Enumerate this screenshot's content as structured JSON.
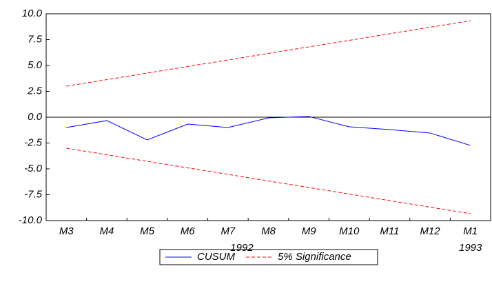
{
  "chart_data": {
    "type": "line",
    "categories": [
      "M3",
      "M4",
      "M5",
      "M6",
      "M7",
      "M8",
      "M9",
      "M10",
      "M11",
      "M12",
      "M1"
    ],
    "year_labels": [
      null,
      null,
      null,
      null,
      "1992",
      null,
      null,
      null,
      null,
      null,
      "1993"
    ],
    "series": [
      {
        "name": "CUSUM",
        "color": "#0000ff",
        "dash": false,
        "values": [
          -1.0,
          -0.33,
          -2.2,
          -0.67,
          -1.0,
          -0.07,
          0.07,
          -0.93,
          -1.2,
          -1.53,
          -2.73
        ]
      },
      {
        "name": "5% Significance",
        "color": "#ff0000",
        "dash": true,
        "values": [
          3.0,
          3.63,
          4.27,
          4.9,
          5.53,
          6.17,
          6.8,
          7.43,
          8.07,
          8.7,
          9.33
        ]
      },
      {
        "color": "#ff0000",
        "dash": true,
        "values": [
          -3.0,
          -3.63,
          -4.27,
          -4.9,
          -5.53,
          -6.17,
          -6.8,
          -7.43,
          -8.07,
          -8.7,
          -9.33
        ]
      }
    ],
    "ylim": [
      -10,
      10
    ],
    "yticks": [
      {
        "value": -10,
        "label": "-10.0"
      },
      -7.5,
      {
        "value": -5,
        "label": "-5.0"
      },
      -2.5,
      {
        "value": 0,
        "label": "0.0"
      },
      2.5,
      {
        "value": 5,
        "label": "5.0"
      },
      7.5,
      {
        "value": 10,
        "label": "10.0"
      }
    ],
    "zero_line": true,
    "grid": false
  }
}
